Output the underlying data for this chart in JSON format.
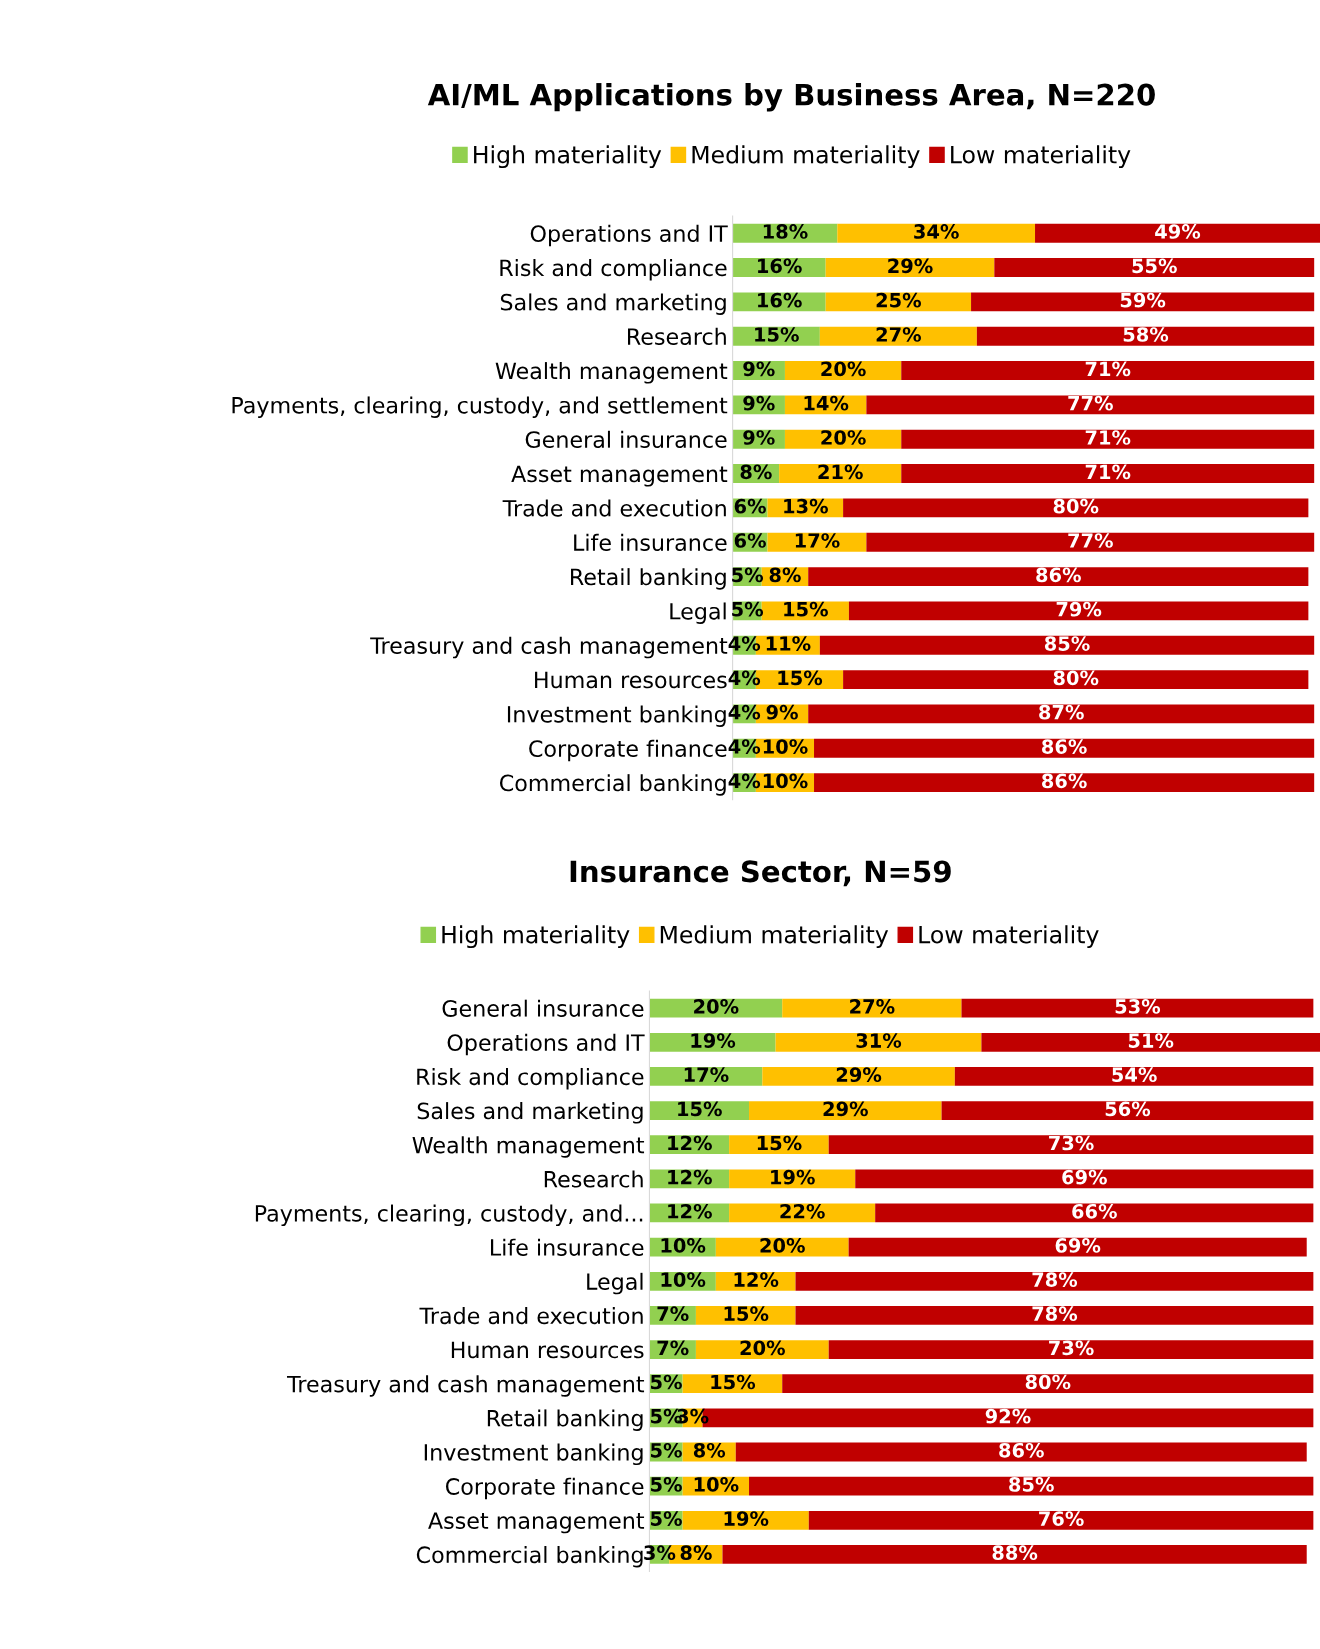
{
  "chart_data": [
    {
      "type": "bar",
      "orientation": "horizontal",
      "stacked": true,
      "title": "AI/ML Applications by Business Area, N=220",
      "legend": "top",
      "grid": false,
      "tick_labels": "y",
      "categories": [
        "Operations and IT",
        "Risk and compliance",
        "Sales and marketing",
        "Research",
        "Wealth management",
        "Payments, clearing, custody, and settlement",
        "General insurance",
        "Asset management",
        "Trade and execution",
        "Life insurance",
        "Retail banking",
        "Legal",
        "Treasury and cash management",
        "Human resources",
        "Investment banking",
        "Corporate finance",
        "Commercial banking"
      ],
      "series": [
        {
          "name": "High materiality",
          "color": "#92d050",
          "values": [
            18,
            16,
            16,
            15,
            9,
            9,
            9,
            8,
            6,
            6,
            5,
            5,
            4,
            4,
            4,
            4,
            4
          ],
          "value_labels": [
            "18%",
            "16%",
            "16%",
            "15%",
            "9%",
            "9%",
            "9%",
            "8%",
            "6%",
            "6%",
            "5%",
            "5%",
            "4%",
            "4%",
            "4%",
            "4%",
            "4%"
          ]
        },
        {
          "name": "Medium materiality",
          "color": "#ffc000",
          "values": [
            34,
            29,
            25,
            27,
            20,
            14,
            20,
            21,
            13,
            17,
            8,
            15,
            11,
            15,
            9,
            10,
            10
          ],
          "value_labels": [
            "34%",
            "29%",
            "25%",
            "27%",
            "20%",
            "14%",
            "20%",
            "21%",
            "13%",
            "17%",
            "8%",
            "15%",
            "11%",
            "15%",
            "9%",
            "10%",
            "10%"
          ]
        },
        {
          "name": "Low materiality",
          "color": "#c00000",
          "values": [
            49,
            55,
            59,
            58,
            71,
            77,
            71,
            71,
            80,
            77,
            86,
            79,
            85,
            80,
            87,
            86,
            86
          ],
          "value_labels": [
            "49%",
            "55%",
            "59%",
            "58%",
            "71%",
            "77%",
            "71%",
            "71%",
            "80%",
            "77%",
            "86%",
            "79%",
            "85%",
            "80%",
            "87%",
            "86%",
            "86%"
          ]
        }
      ]
    },
    {
      "type": "bar",
      "orientation": "horizontal",
      "stacked": true,
      "title": "Insurance Sector, N=59",
      "legend": "top",
      "grid": false,
      "tick_labels": "y",
      "categories": [
        "General insurance",
        "Operations and IT",
        "Risk and compliance",
        "Sales and marketing",
        "Wealth management",
        "Research",
        "Payments, clearing, custody, and...",
        "Life insurance",
        "Legal",
        "Trade and execution",
        "Human resources",
        "Treasury and cash management",
        "Retail banking",
        "Investment banking",
        "Corporate finance",
        "Asset management",
        "Commercial banking"
      ],
      "series": [
        {
          "name": "High materiality",
          "color": "#92d050",
          "values": [
            20,
            19,
            17,
            15,
            12,
            12,
            12,
            10,
            10,
            7,
            7,
            5,
            5,
            5,
            5,
            5,
            3
          ],
          "value_labels": [
            "20%",
            "19%",
            "17%",
            "15%",
            "12%",
            "12%",
            "12%",
            "10%",
            "10%",
            "7%",
            "7%",
            "5%",
            "5%",
            "5%",
            "5%",
            "5%",
            "3%"
          ]
        },
        {
          "name": "Medium materiality",
          "color": "#ffc000",
          "values": [
            27,
            31,
            29,
            29,
            15,
            19,
            22,
            20,
            12,
            15,
            20,
            15,
            3,
            8,
            10,
            19,
            8
          ],
          "value_labels": [
            "27%",
            "31%",
            "29%",
            "29%",
            "15%",
            "19%",
            "22%",
            "20%",
            "12%",
            "15%",
            "20%",
            "15%",
            "3%",
            "8%",
            "10%",
            "19%",
            "8%"
          ]
        },
        {
          "name": "Low materiality",
          "color": "#c00000",
          "values": [
            53,
            51,
            54,
            56,
            73,
            69,
            66,
            69,
            78,
            78,
            73,
            80,
            92,
            86,
            85,
            76,
            88
          ],
          "value_labels": [
            "53%",
            "51%",
            "54%",
            "56%",
            "73%",
            "69%",
            "66%",
            "69%",
            "78%",
            "78%",
            "73%",
            "80%",
            "92%",
            "86%",
            "85%",
            "76%",
            "88%"
          ]
        }
      ]
    }
  ]
}
